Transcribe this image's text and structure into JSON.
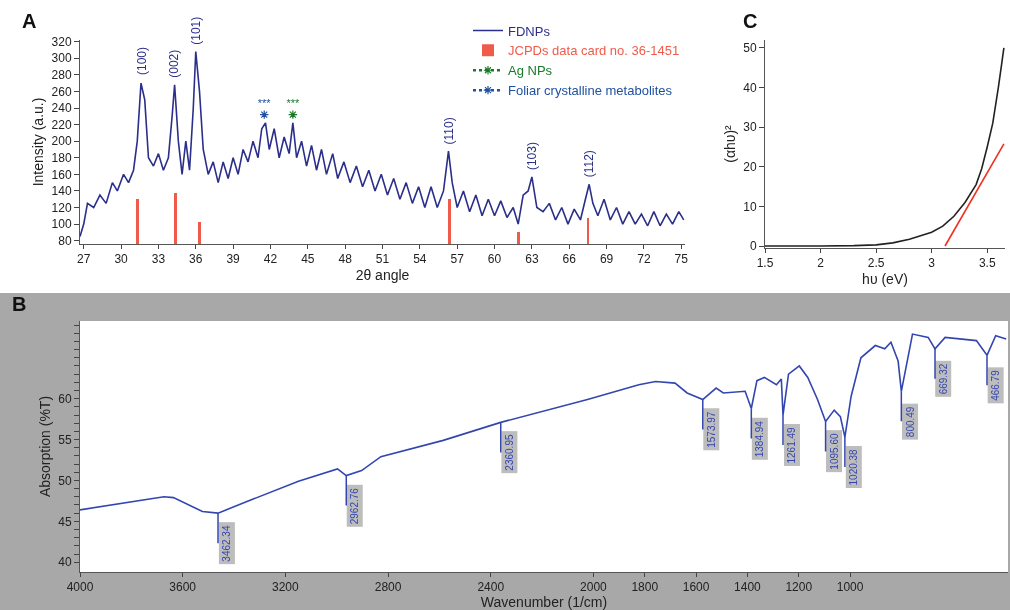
{
  "chart_data": [
    {
      "type": "line",
      "title": "A",
      "xlabel": "2θ angle",
      "ylabel": "Intensity (a.u.)",
      "xlim": [
        26.7,
        75.3
      ],
      "ylim": [
        76,
        322
      ],
      "xticks": [
        27,
        30,
        33,
        36,
        39,
        42,
        45,
        48,
        51,
        54,
        57,
        60,
        63,
        66,
        69,
        72,
        75
      ],
      "yticks": [
        80,
        100,
        120,
        140,
        160,
        180,
        200,
        220,
        240,
        260,
        280,
        300,
        320
      ],
      "legend": "top right",
      "series": [
        {
          "name": "FDNPs",
          "color": "#2b2f8a",
          "x": [
            26.7,
            27,
            27.3,
            27.8,
            28.3,
            28.8,
            29.3,
            29.7,
            30.2,
            30.6,
            31.0,
            31.3,
            31.6,
            31.9,
            32.2,
            32.6,
            33.0,
            33.4,
            33.8,
            34.1,
            34.3,
            34.6,
            34.9,
            35.2,
            35.5,
            35.8,
            36.0,
            36.3,
            36.6,
            37.0,
            37.4,
            37.8,
            38.2,
            38.6,
            39.0,
            39.4,
            39.8,
            40.2,
            40.6,
            41.0,
            41.3,
            41.6,
            41.9,
            42.3,
            42.7,
            43.1,
            43.5,
            43.8,
            44.1,
            44.5,
            44.9,
            45.3,
            45.7,
            46.1,
            46.5,
            47.0,
            47.4,
            47.9,
            48.4,
            48.9,
            49.4,
            49.9,
            50.4,
            50.9,
            51.4,
            51.9,
            52.4,
            52.9,
            53.4,
            53.9,
            54.4,
            54.9,
            55.4,
            55.9,
            56.3,
            56.6,
            57.0,
            57.5,
            58.0,
            58.5,
            59.0,
            59.5,
            60.0,
            60.5,
            61.0,
            61.5,
            61.9,
            62.3,
            62.7,
            63.0,
            63.4,
            63.9,
            64.4,
            64.9,
            65.4,
            65.9,
            66.4,
            66.9,
            67.3,
            67.6,
            67.9,
            68.3,
            68.8,
            69.3,
            69.8,
            70.3,
            70.8,
            71.3,
            71.8,
            72.3,
            72.8,
            73.3,
            73.8,
            74.3,
            74.8,
            75.2
          ],
          "values": [
            85,
            100,
            125,
            120,
            135,
            125,
            150,
            140,
            160,
            150,
            165,
            200,
            270,
            250,
            180,
            170,
            185,
            165,
            180,
            230,
            268,
            200,
            160,
            200,
            165,
            240,
            308,
            260,
            190,
            160,
            175,
            150,
            175,
            155,
            180,
            160,
            190,
            175,
            200,
            180,
            215,
            222,
            190,
            215,
            180,
            205,
            185,
            222,
            180,
            200,
            170,
            195,
            165,
            190,
            160,
            185,
            155,
            175,
            150,
            170,
            145,
            165,
            140,
            160,
            135,
            155,
            130,
            150,
            125,
            145,
            120,
            145,
            120,
            140,
            188,
            150,
            120,
            140,
            115,
            135,
            110,
            130,
            110,
            128,
            108,
            120,
            100,
            135,
            140,
            157,
            120,
            115,
            125,
            105,
            120,
            100,
            118,
            105,
            130,
            148,
            125,
            110,
            130,
            105,
            120,
            100,
            115,
            100,
            112,
            98,
            115,
            98,
            112,
            100,
            115,
            105
          ]
        },
        {
          "name": "JCPDs data card no. 36-1451",
          "type": "bar",
          "color": "#f05a4a",
          "x": [
            31.3,
            34.4,
            36.3,
            56.4,
            61.9,
            67.5
          ],
          "values": [
            130,
            138,
            102,
            130,
            90,
            107
          ]
        },
        {
          "name": "Ag NPs",
          "type": "scatter",
          "marker": "cross",
          "line_style": "dotted",
          "color": "#1a7a2a",
          "x": [
            43.8
          ],
          "values": [
            232
          ],
          "value_labels": [
            "***"
          ]
        },
        {
          "name": "Foliar crystalline metabolites",
          "type": "scatter",
          "marker": "cross",
          "line_style": "dotted",
          "color": "#2050a0",
          "x": [
            41.5
          ],
          "values": [
            232
          ],
          "value_labels": [
            "***"
          ]
        }
      ],
      "annotations": [
        {
          "text": "(100)",
          "x": 31.7,
          "y": 274
        },
        {
          "text": "(002)",
          "x": 34.3,
          "y": 270
        },
        {
          "text": "(101)",
          "x": 36.0,
          "y": 310
        },
        {
          "text": "(110)",
          "x": 56.3,
          "y": 190
        },
        {
          "text": "(103)",
          "x": 63.0,
          "y": 159
        },
        {
          "text": "(112)",
          "x": 67.6,
          "y": 150
        }
      ]
    },
    {
      "type": "line",
      "title": "C",
      "xlabel": "hυ (eV)",
      "ylabel": "(αhυ)²",
      "xlim": [
        1.5,
        3.66
      ],
      "ylim": [
        -0.5,
        52
      ],
      "xticks": [
        1.5,
        2,
        2.5,
        3,
        3.5
      ],
      "yticks": [
        0,
        10,
        20,
        30,
        40,
        50
      ],
      "series": [
        {
          "color": "#222222",
          "x": [
            1.5,
            2.0,
            2.3,
            2.5,
            2.65,
            2.8,
            3.0,
            3.1,
            3.2,
            3.3,
            3.4,
            3.45,
            3.5,
            3.55,
            3.6,
            3.63,
            3.65
          ],
          "values": [
            0,
            0,
            0.1,
            0.3,
            0.8,
            1.7,
            3.5,
            5,
            7.5,
            11,
            15.5,
            19.5,
            25,
            31,
            40,
            46,
            50
          ]
        },
        {
          "color": "#f03020",
          "x": [
            3.12,
            3.65
          ],
          "values": [
            0,
            25.8
          ]
        }
      ]
    },
    {
      "type": "line",
      "title": "B",
      "xlabel": "Wavenumber (1/cm)",
      "ylabel": "Absorption (%T)",
      "xlim": [
        4000,
        385
      ],
      "ylim": [
        38.8,
        69.5
      ],
      "xticks": [
        4000,
        3600,
        3200,
        2800,
        2400,
        2000,
        1800,
        1600,
        1400,
        1200,
        1000
      ],
      "yticks": [
        40,
        {
          "value": 41,
          "label": null
        },
        {
          "value": 42,
          "label": null
        },
        {
          "value": 43,
          "label": null
        },
        {
          "value": 44,
          "label": null
        },
        45,
        {
          "value": 46,
          "label": null
        },
        {
          "value": 47,
          "label": null
        },
        {
          "value": 48,
          "label": null
        },
        {
          "value": 49,
          "label": null
        },
        50,
        {
          "value": 51,
          "label": null
        },
        {
          "value": 52,
          "label": null
        },
        {
          "value": 53,
          "label": null
        },
        {
          "value": 54,
          "label": null
        },
        55,
        {
          "value": 56,
          "label": null
        },
        {
          "value": 57,
          "label": null
        },
        {
          "value": 58,
          "label": null
        },
        {
          "value": 59,
          "label": null
        },
        60,
        {
          "value": 61,
          "label": null
        },
        {
          "value": 62,
          "label": null
        },
        {
          "value": 63,
          "label": null
        },
        {
          "value": 64,
          "label": null
        },
        {
          "value": 65,
          "label": null
        },
        {
          "value": 66,
          "label": null
        },
        {
          "value": 67,
          "label": null
        },
        {
          "value": 68,
          "label": null
        },
        {
          "value": 69,
          "label": null
        }
      ],
      "series": [
        {
          "color": "#3346b0",
          "x": [
            4000,
            3673,
            3636,
            3523,
            3462.34,
            3335,
            3149,
            2997,
            2962.76,
            2903,
            2828,
            2585,
            2360.95,
            2023,
            1823,
            1758,
            1682,
            1635,
            1573.97,
            1522,
            1494,
            1409,
            1384.94,
            1363,
            1334,
            1287,
            1268,
            1261.49,
            1240,
            1198,
            1165,
            1127,
            1095.6,
            1062,
            1038,
            1020.38,
            996,
            958,
            902,
            865,
            841,
            813,
            800.49,
            775,
            757,
            696,
            669.32,
            630,
            508,
            466.79,
            433,
            392
          ],
          "values": [
            46.4,
            48.0,
            47.9,
            46.2,
            46.0,
            47.6,
            49.9,
            51.4,
            50.6,
            51.2,
            52.9,
            54.9,
            57.1,
            59.9,
            61.7,
            62.1,
            61.9,
            60.7,
            59.9,
            61.3,
            60.7,
            60.9,
            58.8,
            62.2,
            62.6,
            61.7,
            62.4,
            58.0,
            63.0,
            64.0,
            62.6,
            59.9,
            57.2,
            58.6,
            57.8,
            55.3,
            60.3,
            65.0,
            66.5,
            66.1,
            66.9,
            64.6,
            60.9,
            65.0,
            67.9,
            67.5,
            66.1,
            67.5,
            67.1,
            65.3,
            67.7,
            67.3
          ]
        }
      ],
      "annotations": [
        {
          "text": "3462.34",
          "x": 3462.34,
          "y": 46.0
        },
        {
          "text": "2962.76",
          "x": 2962.76,
          "y": 50.6
        },
        {
          "text": "2360.95",
          "x": 2360.95,
          "y": 57.1
        },
        {
          "text": "1573.97",
          "x": 1573.97,
          "y": 59.9
        },
        {
          "text": "1384.94",
          "x": 1384.94,
          "y": 58.8
        },
        {
          "text": "1261.49",
          "x": 1261.49,
          "y": 58.0
        },
        {
          "text": "1095.60",
          "x": 1095.6,
          "y": 57.2
        },
        {
          "text": "1020.38",
          "x": 1020.38,
          "y": 55.3
        },
        {
          "text": "800.49",
          "x": 800.49,
          "y": 60.9
        },
        {
          "text": "669.32",
          "x": 669.32,
          "y": 66.1
        },
        {
          "text": "466.79",
          "x": 466.79,
          "y": 65.3
        }
      ]
    }
  ]
}
